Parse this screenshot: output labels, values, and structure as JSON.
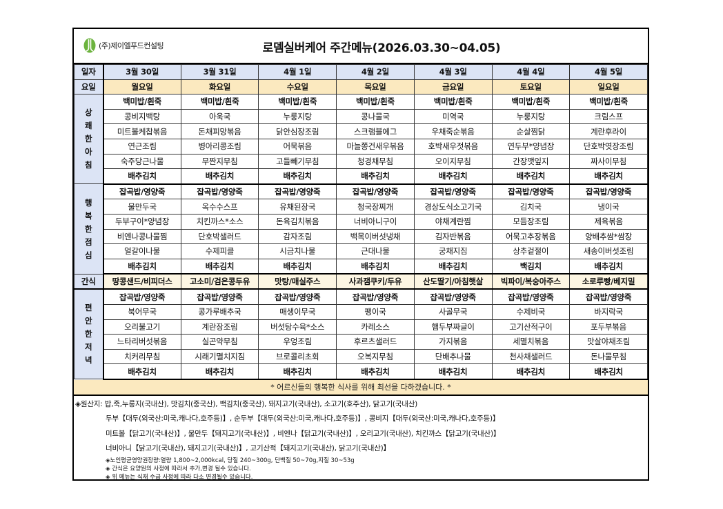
{
  "header": {
    "company": "(주)제이엘푸드컨설팅",
    "title": "로뎀실버케어 주간메뉴(2026.03.30~04.05)",
    "logo_color": "#6cb33e"
  },
  "table": {
    "date_label": "일자",
    "day_label": "요일",
    "dates": [
      "3월 30일",
      "3월 31일",
      "4월 1일",
      "4월 2일",
      "4월 3일",
      "4월 4일",
      "4월 5일"
    ],
    "days": [
      "월요일",
      "화요일",
      "수요일",
      "목요일",
      "금요일",
      "토요일",
      "일요일"
    ],
    "breakfast": {
      "label": "상쾌한아침",
      "rows": [
        [
          "백미밥/흰죽",
          "백미밥/흰죽",
          "백미밥/흰죽",
          "백미밥/흰죽",
          "백미밥/흰죽",
          "백미밥/흰죽",
          "백미밥/흰죽"
        ],
        [
          "콩비지백탕",
          "아욱국",
          "누룽지탕",
          "콩나물국",
          "미역국",
          "누룽지탕",
          "크림스프"
        ],
        [
          "미트볼케찹볶음",
          "돈채피망볶음",
          "닭안심장조림",
          "스크램블에그",
          "우채죽순볶음",
          "순살찜닭",
          "계란후라이"
        ],
        [
          "연근조림",
          "병아리콩조림",
          "어묵볶음",
          "마늘쫑건새우볶음",
          "호박새우젓볶음",
          "연두부*양념장",
          "단호박엿장조림"
        ],
        [
          "숙주당근나물",
          "무짠지무침",
          "고들빼기무침",
          "청경채무침",
          "오이지무침",
          "간장깻잎지",
          "짜사이무침"
        ],
        [
          "배추김치",
          "배추김치",
          "배추김치",
          "배추김치",
          "배추김치",
          "배추김치",
          "배추김치"
        ]
      ]
    },
    "lunch": {
      "label": "행복한점심",
      "rows": [
        [
          "잡곡밥/영양죽",
          "잡곡밥/영양죽",
          "잡곡밥/영양죽",
          "잡곡밥/영양죽",
          "잡곡밥/영양죽",
          "잡곡밥/영양죽",
          "잡곡밥/영양죽"
        ],
        [
          "물만두국",
          "옥수수스프",
          "유채된장국",
          "청국장찌개",
          "경상도식소고기국",
          "김치국",
          "냉이국"
        ],
        [
          "두부구이*양념장",
          "치킨까스*소스",
          "돈육김치볶음",
          "너비아니구이",
          "야채계란찜",
          "모듬장조림",
          "제육볶음"
        ],
        [
          "비엔나콩나물찜",
          "단호박샐러드",
          "감자조림",
          "백목이버섯냉채",
          "김자반볶음",
          "어묵고추장볶음",
          "양배추쌈*쌈장"
        ],
        [
          "얼갈이나물",
          "수제피클",
          "시금치나물",
          "근대나물",
          "궁채지짐",
          "상추겉절이",
          "새송이버섯조림"
        ],
        [
          "배추김치",
          "배추김치",
          "배추김치",
          "배추김치",
          "배추김치",
          "백김치",
          "배추김치"
        ]
      ]
    },
    "snack": {
      "label": "간식",
      "items": [
        "땅콩샌드/비피더스",
        "고소미/검은콩두유",
        "맛탕/매실주스",
        "사과잼쿠키/두유",
        "산도딸기/아침햇살",
        "빅파이/복숭아주스",
        "소로루빵/베지밀"
      ]
    },
    "dinner": {
      "label": "편안한저녁",
      "rows": [
        [
          "잡곡밥/영양죽",
          "잡곡밥/영양죽",
          "잡곡밥/영양죽",
          "잡곡밥/영양죽",
          "잡곡밥/영양죽",
          "잡곡밥/영양죽",
          "잡곡밥/영양죽"
        ],
        [
          "북어무국",
          "콩가루배추국",
          "매생이무국",
          "팽이국",
          "사골무국",
          "수제비국",
          "바지락국"
        ],
        [
          "오리불고기",
          "계란장조림",
          "버섯탕수육*소스",
          "카레소스",
          "햄두부짜글이",
          "고기산적구이",
          "포두부볶음"
        ],
        [
          "느타리버섯볶음",
          "실곤약무침",
          "우엉조림",
          "후르츠샐러드",
          "가지볶음",
          "세멸치볶음",
          "맛살야채조림"
        ],
        [
          "치커리무침",
          "시래기멸치지짐",
          "브로콜리초회",
          "오복지무침",
          "단배추나물",
          "천사채샐러드",
          "돈나물무침"
        ],
        [
          "배추김치",
          "배추김치",
          "배추김치",
          "배추김치",
          "배추김치",
          "배추김치",
          "배추김치"
        ]
      ]
    }
  },
  "banner": "* 어르신들의 행복한 식사를 위해 최선을 다하겠습니다. *",
  "notes": {
    "origin_lines": [
      "◈원산지: 밥,죽,누룽지(국내산), 맛김치(중국산), 백김치(중국산), 돼지고기(국내산), 소고기(호주산), 닭고기(국내산)",
      "두부【대두(외국산:미국,캐나다,호주등)】, 순두부【대두(외국산:미국,캐나다,호주등)】, 콩비지【대두(외국산:미국,캐나다,호주등)】",
      "미트볼【닭고기(국내산)】, 물만두【돼지고기(국내산)】, 비엔나【닭고기(국내산)】, 오리고기(국내산), 치킨까스【닭고기(국내산)】",
      "너비아니【닭고기(국내산), 돼지고기(국내산)】, 고기산적【돼지고기(국내산), 닭고기(국내산)】"
    ],
    "small_lines": [
      "◈노인평균영양권장량:열량 1,800~2,000kcal, 당질 240~300g, 단백질 50~70g,지질 30~53g",
      "◈ 간식은 요양원의 사정에 따라서 추가,변경 될수 있습니다.",
      "◈ 위 메뉴는 식재 수급 사정에 따라 다소 변경될수 있습니다."
    ]
  }
}
